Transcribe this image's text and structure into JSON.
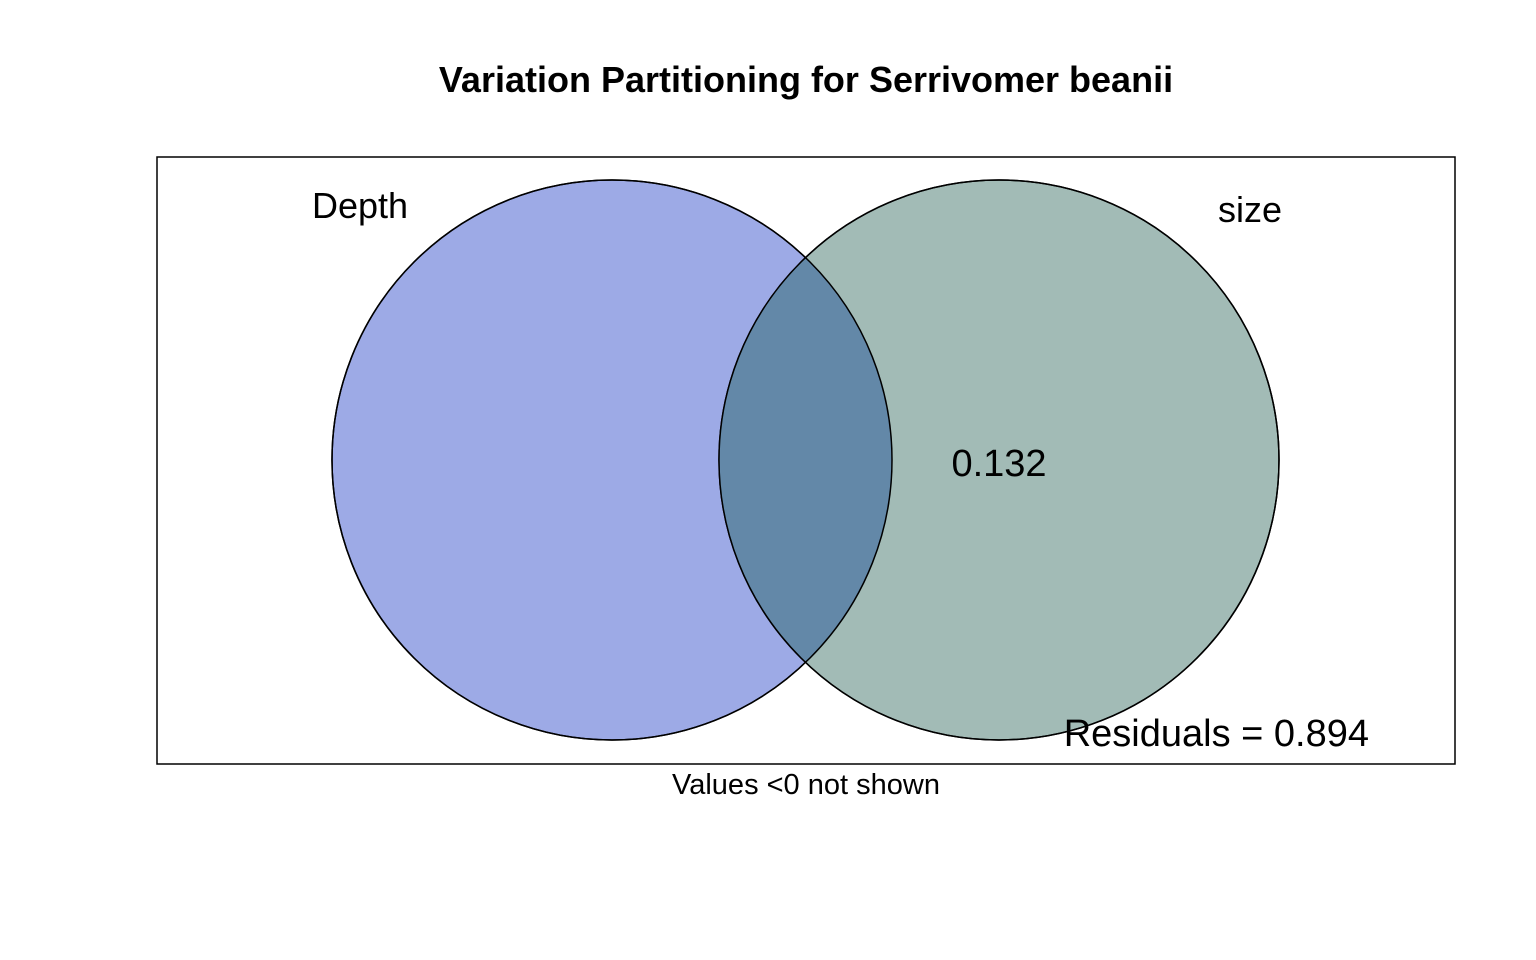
{
  "title": "Variation Partitioning for Serrivomer beanii",
  "sets": [
    {
      "name": "Depth",
      "color": "#9daae6"
    },
    {
      "name": "size",
      "color": "#a2bbb6"
    }
  ],
  "overlap_color": "#6388a8",
  "regions": {
    "depth_only": "",
    "shared": "",
    "size_only": "0.132"
  },
  "residuals_label": "Residuals = 0.894",
  "footnote": "Values <0 not shown"
}
